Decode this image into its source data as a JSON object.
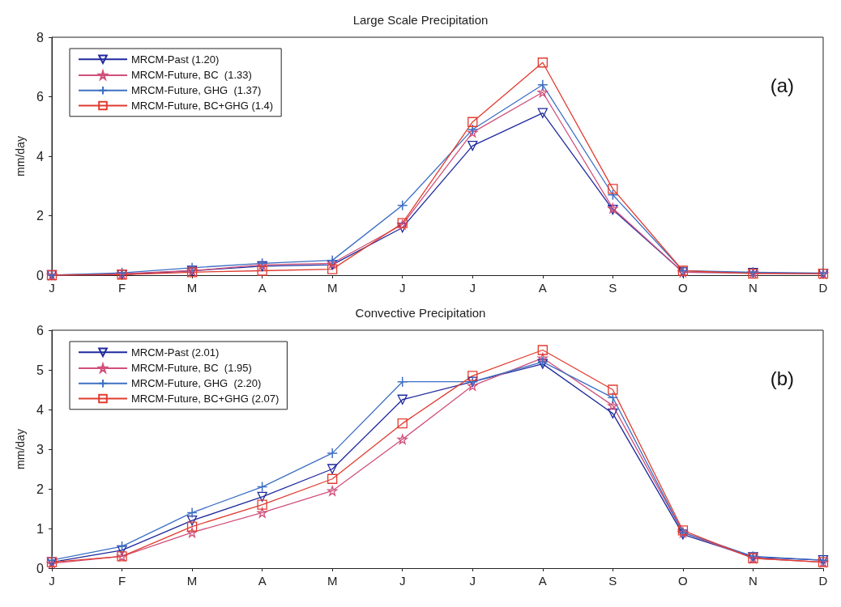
{
  "chart_data": [
    {
      "type": "line",
      "title": "Large Scale Precipitation",
      "ylabel": "mm/day",
      "categories": [
        "J",
        "F",
        "M",
        "A",
        "M",
        "J",
        "J",
        "A",
        "S",
        "O",
        "N",
        "D"
      ],
      "ylim": [
        0,
        8
      ],
      "yticks": [
        0,
        2,
        4,
        6,
        8
      ],
      "grid": false,
      "legend": "top left",
      "annotations": [
        "(a)"
      ],
      "series": [
        {
          "name": "MRCM-Past (1.20)",
          "color": "#1f2a9c",
          "marker": "triangle",
          "values": [
            0,
            0.02,
            0.15,
            0.3,
            0.35,
            1.6,
            4.35,
            5.45,
            2.2,
            0.1,
            0.08,
            0.05
          ]
        },
        {
          "name": "MRCM-Future, BC  (1.33)",
          "color": "#d0507a",
          "marker": "star",
          "values": [
            0,
            0.05,
            0.15,
            0.35,
            0.4,
            1.7,
            4.8,
            6.15,
            2.25,
            0.1,
            0.08,
            0.05
          ]
        },
        {
          "name": "MRCM-Future, GHG  (1.37)",
          "color": "#3d6fc4",
          "marker": "cross",
          "values": [
            0,
            0.08,
            0.25,
            0.4,
            0.5,
            2.35,
            4.9,
            6.4,
            2.7,
            0.15,
            0.1,
            0.07
          ]
        },
        {
          "name": "MRCM-Future, BC+GHG (1.4)",
          "color": "#e03c30",
          "marker": "square",
          "values": [
            0,
            0.02,
            0.1,
            0.15,
            0.2,
            1.75,
            5.15,
            7.15,
            2.9,
            0.15,
            0.05,
            0.05
          ]
        }
      ]
    },
    {
      "type": "line",
      "title": "Convective Precipitation",
      "ylabel": "mm/day",
      "categories": [
        "J",
        "F",
        "M",
        "A",
        "M",
        "J",
        "J",
        "A",
        "S",
        "O",
        "N",
        "D"
      ],
      "ylim": [
        0,
        6
      ],
      "yticks": [
        0,
        1,
        2,
        3,
        4,
        5,
        6
      ],
      "grid": false,
      "legend": "top left",
      "annotations": [
        "(b)"
      ],
      "series": [
        {
          "name": "MRCM-Past (2.01)",
          "color": "#1f2a9c",
          "marker": "triangle",
          "values": [
            0.15,
            0.45,
            1.2,
            1.8,
            2.5,
            4.25,
            4.7,
            5.15,
            3.9,
            0.85,
            0.28,
            0.2
          ]
        },
        {
          "name": "MRCM-Future, BC  (1.95)",
          "color": "#d0507a",
          "marker": "star",
          "values": [
            0.12,
            0.3,
            0.9,
            1.4,
            1.95,
            3.25,
            4.6,
            5.3,
            4.1,
            0.9,
            0.25,
            0.15
          ]
        },
        {
          "name": "MRCM-Future, GHG  (2.20)",
          "color": "#3d6fc4",
          "marker": "cross",
          "values": [
            0.2,
            0.55,
            1.4,
            2.05,
            2.9,
            4.7,
            4.7,
            5.2,
            4.3,
            0.9,
            0.3,
            0.2
          ]
        },
        {
          "name": "MRCM-Future, BC+GHG (2.07)",
          "color": "#e03c30",
          "marker": "square",
          "values": [
            0.15,
            0.3,
            1.05,
            1.6,
            2.25,
            3.65,
            4.85,
            5.5,
            4.5,
            0.95,
            0.25,
            0.15
          ]
        }
      ]
    }
  ]
}
